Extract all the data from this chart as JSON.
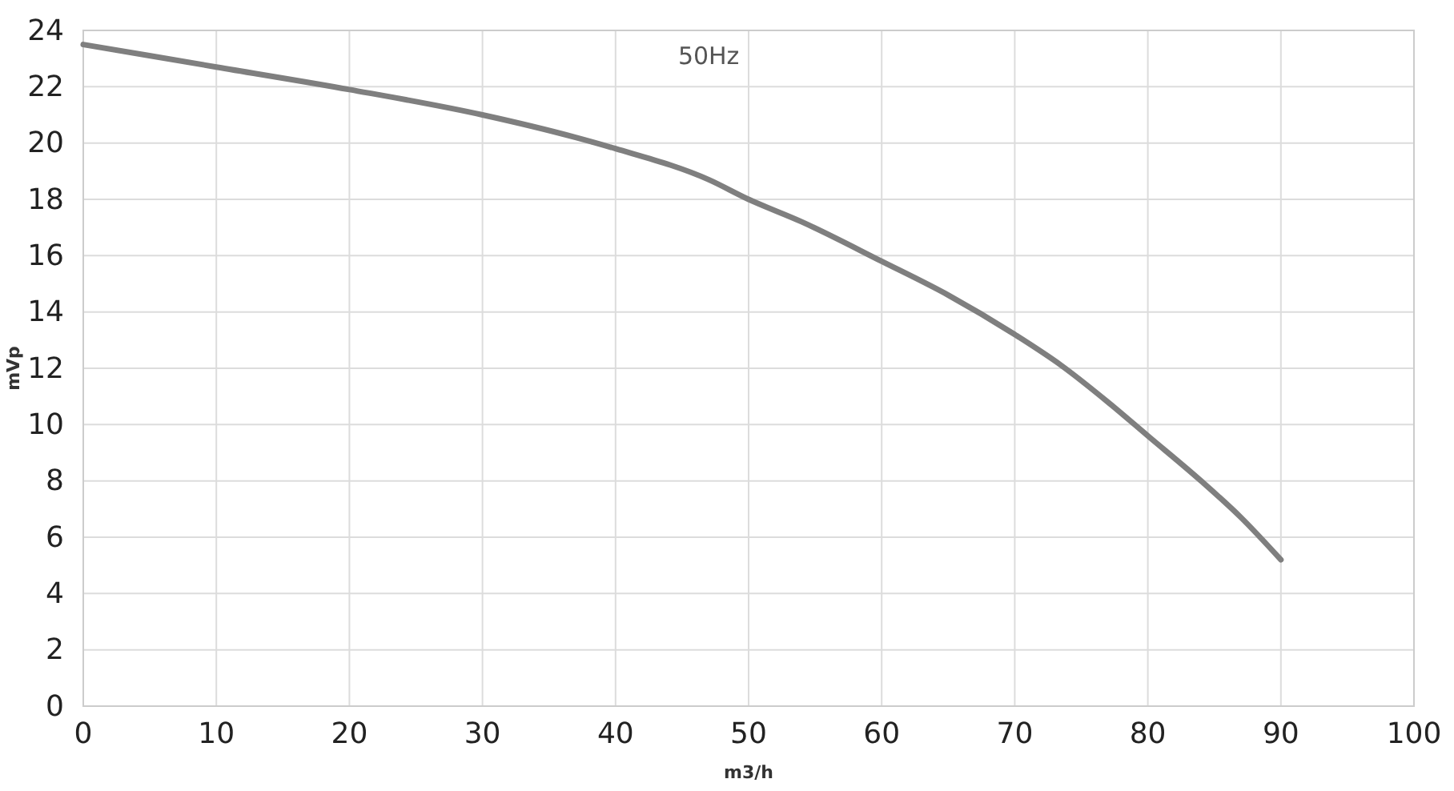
{
  "chart_data": {
    "type": "line",
    "title": "50Hz",
    "xlabel": "m3/h",
    "ylabel": "mVp",
    "x": [
      0,
      10,
      20,
      30,
      37,
      40,
      47,
      50,
      54,
      60,
      65,
      70,
      73.5,
      77,
      80,
      84,
      87,
      90
    ],
    "series": [
      {
        "color": "#7f7f7f",
        "values": [
          23.5,
          22.7,
          21.9,
          21.0,
          20.2,
          19.8,
          18.7,
          18.0,
          17.2,
          15.8,
          14.6,
          13.2,
          12.1,
          10.8,
          9.6,
          8.0,
          6.7,
          5.2
        ]
      }
    ],
    "xlim": [
      0,
      100
    ],
    "xticks": [
      0,
      10,
      20,
      30,
      40,
      50,
      60,
      70,
      80,
      90,
      100
    ],
    "ylim": [
      0,
      24
    ],
    "yticks": [
      0,
      2,
      4,
      6,
      8,
      10,
      12,
      14,
      16,
      18,
      20,
      22,
      24
    ],
    "grid": true,
    "marker": "none",
    "line_style": "solid"
  }
}
